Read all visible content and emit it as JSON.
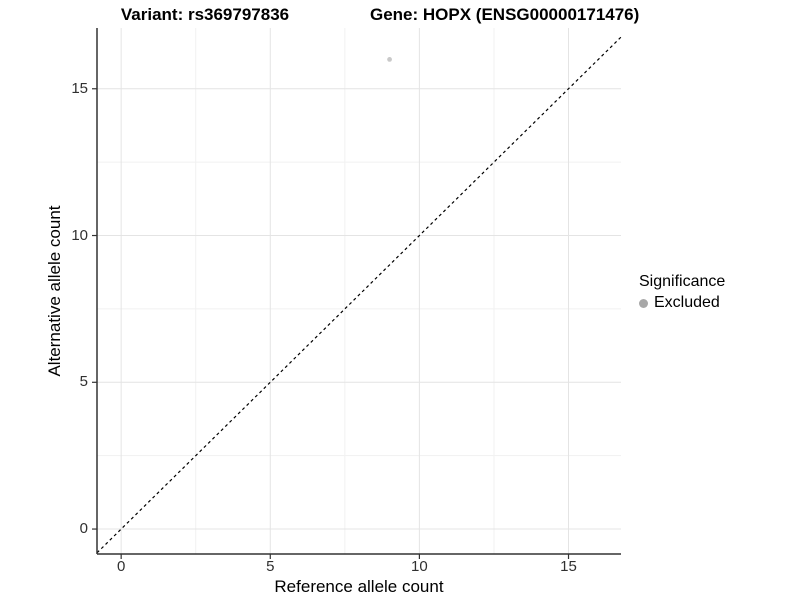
{
  "chart_data": {
    "type": "scatter",
    "title_left": "Variant: rs369797836",
    "title_right": "Gene: HOPX (ENSG00000171476)",
    "xlabel": "Reference allele count",
    "ylabel": "Alternative allele count",
    "x_ticks": [
      0,
      5,
      10,
      15
    ],
    "y_ticks": [
      0,
      5,
      10,
      15
    ],
    "x_minor_ticks": [
      2.5,
      7.5,
      12.5
    ],
    "y_minor_ticks": [
      2.5,
      7.5,
      12.5
    ],
    "xlim": [
      -0.81,
      16.76
    ],
    "ylim": [
      -0.85,
      17.07
    ],
    "grid": true,
    "identity_line": {
      "style": "dashed",
      "color": "#000000",
      "from": [
        -0.81,
        -0.81
      ],
      "to": [
        16.76,
        16.76
      ]
    },
    "series": [
      {
        "name": "Excluded",
        "color": "#c9c9c9",
        "points": [
          {
            "x": 9,
            "y": 16
          }
        ]
      }
    ],
    "legend": {
      "title": "Significance",
      "position": "right",
      "items": [
        {
          "label": "Excluded",
          "color": "#a8a8a8"
        }
      ]
    }
  },
  "colors": {
    "background": "#ffffff",
    "grid_major": "#e4e4e4",
    "grid_minor": "#f1f1f1",
    "axis_line": "#333333",
    "tick_mark": "#333333",
    "tick_label": "#303030",
    "diagonal_line": "#000000"
  }
}
